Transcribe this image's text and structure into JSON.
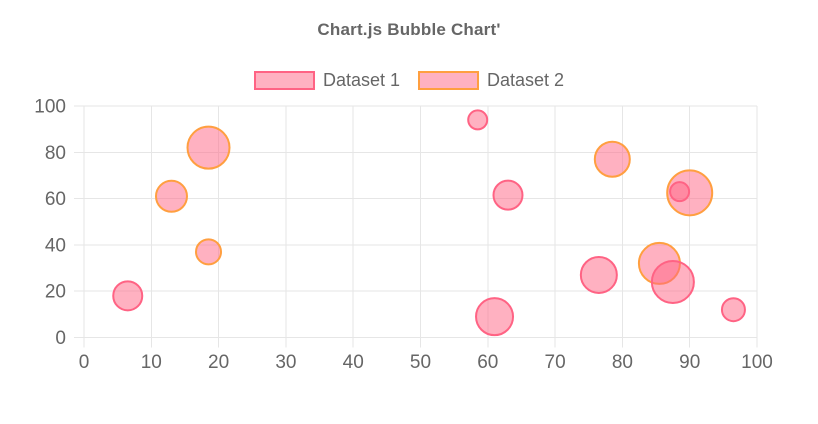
{
  "chart_data": {
    "type": "bubble",
    "title": "Chart.js Bubble Chart'",
    "legend_position": "top",
    "grid": true,
    "xlim": [
      0,
      100
    ],
    "ylim": [
      0,
      100
    ],
    "x_ticks": [
      0,
      10,
      20,
      30,
      40,
      50,
      60,
      70,
      80,
      90,
      100
    ],
    "y_ticks": [
      0,
      20,
      40,
      60,
      80,
      100
    ],
    "xlabel": "",
    "ylabel": "",
    "series": [
      {
        "name": "Dataset 1",
        "border_color": "#ff6384",
        "fill_color": "rgba(255,99,132,0.5)",
        "points": [
          {
            "x": 6.5,
            "y": 18,
            "r": 14.5
          },
          {
            "x": 58.5,
            "y": 94,
            "r": 9.5
          },
          {
            "x": 63,
            "y": 61.5,
            "r": 14.5
          },
          {
            "x": 61,
            "y": 9,
            "r": 18.5
          },
          {
            "x": 88.5,
            "y": 63,
            "r": 9.5
          },
          {
            "x": 76.5,
            "y": 27,
            "r": 18
          },
          {
            "x": 87.5,
            "y": 24,
            "r": 21
          },
          {
            "x": 96.5,
            "y": 12,
            "r": 11.5
          }
        ]
      },
      {
        "name": "Dataset 2",
        "border_color": "#ff9f40",
        "fill_color": "rgba(255,99,132,0.5)",
        "points": [
          {
            "x": 18.5,
            "y": 82,
            "r": 21
          },
          {
            "x": 13,
            "y": 61,
            "r": 15.5
          },
          {
            "x": 18.5,
            "y": 37,
            "r": 12.5
          },
          {
            "x": 78.5,
            "y": 77,
            "r": 17.5
          },
          {
            "x": 90,
            "y": 62.5,
            "r": 22.5
          },
          {
            "x": 85.5,
            "y": 32,
            "r": 20.5
          }
        ]
      }
    ],
    "colors": {
      "grid": "#e6e6e6",
      "tick_text": "#666666",
      "title_text": "#666666",
      "legend_text": "#666666",
      "background": "#ffffff"
    }
  }
}
